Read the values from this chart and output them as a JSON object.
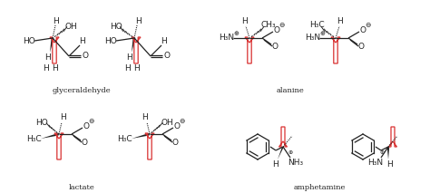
{
  "bg_color": "#ffffff",
  "label_glyceraldehyde": "glyceraldehyde",
  "label_alanine": "alanine",
  "label_lactate": "lactate",
  "label_amphetamine": "amphetamine",
  "arrow_color": "#d93030",
  "line_color": "#222222",
  "text_color": "#222222",
  "figsize": [
    4.74,
    2.13
  ],
  "dpi": 100
}
